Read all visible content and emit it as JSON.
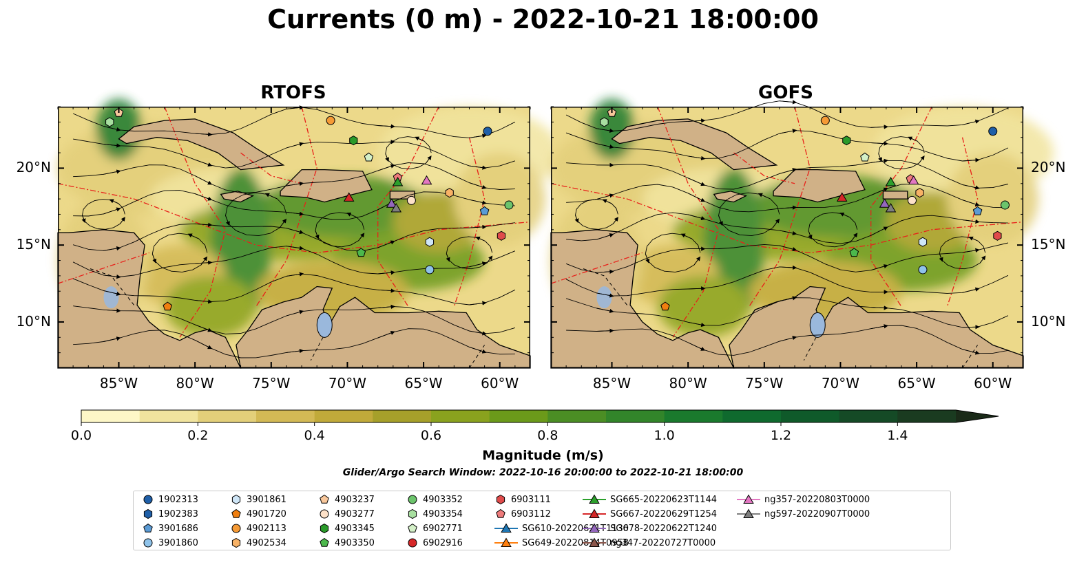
{
  "title": "Currents (0 m) - 2022-10-21 18:00:00",
  "panels": [
    {
      "title": "RTOFS",
      "markers": [
        {
          "id": "1902313",
          "lon": -60.8,
          "lat": 22.4
        },
        {
          "id": "3901686",
          "lon": -61.0,
          "lat": 17.2
        },
        {
          "id": "3901861",
          "lon": -64.6,
          "lat": 15.2
        },
        {
          "id": "3901860",
          "lon": -64.6,
          "lat": 13.4
        },
        {
          "id": "4901720",
          "lon": -81.8,
          "lat": 11.0
        },
        {
          "id": "4902113",
          "lon": -71.1,
          "lat": 23.1
        },
        {
          "id": "4902534",
          "lon": -63.3,
          "lat": 18.4
        },
        {
          "id": "4903237",
          "lon": -85.0,
          "lat": 23.6
        },
        {
          "id": "4903277",
          "lon": -65.8,
          "lat": 17.9
        },
        {
          "id": "4903345",
          "lon": -69.6,
          "lat": 21.8
        },
        {
          "id": "4903350",
          "lon": -69.1,
          "lat": 14.5
        },
        {
          "id": "4903352",
          "lon": -59.4,
          "lat": 17.6
        },
        {
          "id": "4903354",
          "lon": -85.6,
          "lat": 23.0
        },
        {
          "id": "6902771",
          "lon": -68.6,
          "lat": 20.7
        },
        {
          "id": "6903111",
          "lon": -59.9,
          "lat": 15.6
        },
        {
          "id": "6903112",
          "lon": -66.7,
          "lat": 19.4
        },
        {
          "id": "SG667-20220629T1254",
          "lon": -69.9,
          "lat": 18.1
        },
        {
          "id": "SG665-20220623T1144",
          "lon": -66.7,
          "lat": 19.1
        },
        {
          "id": "ng357-20220803T0000",
          "lon": -64.8,
          "lat": 19.2
        },
        {
          "id": "SG678-20220622T1240",
          "lon": -67.1,
          "lat": 17.7
        },
        {
          "id": "ng597-20220907T0000",
          "lon": -66.8,
          "lat": 17.4
        }
      ]
    },
    {
      "title": "GOFS",
      "markers": [
        {
          "id": "1902313",
          "lon": -60.0,
          "lat": 22.4
        },
        {
          "id": "3901686",
          "lon": -61.0,
          "lat": 17.2
        },
        {
          "id": "3901861",
          "lon": -64.6,
          "lat": 15.2
        },
        {
          "id": "3901860",
          "lon": -64.6,
          "lat": 13.4
        },
        {
          "id": "4901720",
          "lon": -81.5,
          "lat": 11.0
        },
        {
          "id": "4902113",
          "lon": -71.0,
          "lat": 23.1
        },
        {
          "id": "4902534",
          "lon": -64.8,
          "lat": 18.4
        },
        {
          "id": "4903237",
          "lon": -85.0,
          "lat": 23.6
        },
        {
          "id": "4903277",
          "lon": -65.3,
          "lat": 17.9
        },
        {
          "id": "4903345",
          "lon": -69.6,
          "lat": 21.8
        },
        {
          "id": "4903350",
          "lon": -69.1,
          "lat": 14.5
        },
        {
          "id": "4903352",
          "lon": -59.2,
          "lat": 17.6
        },
        {
          "id": "4903354",
          "lon": -85.5,
          "lat": 23.0
        },
        {
          "id": "6902771",
          "lon": -68.4,
          "lat": 20.7
        },
        {
          "id": "6903111",
          "lon": -59.7,
          "lat": 15.6
        },
        {
          "id": "6903112",
          "lon": -65.4,
          "lat": 19.3
        },
        {
          "id": "SG667-20220629T1254",
          "lon": -69.9,
          "lat": 18.1
        },
        {
          "id": "SG665-20220623T1144",
          "lon": -66.7,
          "lat": 19.1
        },
        {
          "id": "ng357-20220803T0000",
          "lon": -65.2,
          "lat": 19.2
        },
        {
          "id": "SG678-20220622T1240",
          "lon": -67.1,
          "lat": 17.7
        },
        {
          "id": "ng597-20220907T0000",
          "lon": -66.7,
          "lat": 17.4
        }
      ]
    }
  ],
  "axes": {
    "lon_ticks": [
      -85,
      -80,
      -75,
      -70,
      -65,
      -60
    ],
    "lon_labels": [
      "85°W",
      "80°W",
      "75°W",
      "70°W",
      "65°W",
      "60°W"
    ],
    "lat_ticks": [
      10,
      15,
      20
    ],
    "lat_labels": [
      "10°N",
      "15°N",
      "20°N"
    ],
    "lon_range": [
      -89,
      -58
    ],
    "lat_range": [
      7,
      24
    ]
  },
  "colorbar": {
    "label": "Magnitude (m/s)",
    "ticks": [
      0.0,
      0.2,
      0.4,
      0.6,
      0.8,
      1.0,
      1.2,
      1.4
    ],
    "tick_labels": [
      "0.0",
      "0.2",
      "0.4",
      "0.6",
      "0.8",
      "1.0",
      "1.2",
      "1.4"
    ],
    "vmin": 0.0,
    "vmax": 1.5,
    "extend": "max",
    "colors": [
      "#fdf7c7",
      "#f1e49e",
      "#e3cf7a",
      "#d3b955",
      "#c1aa3a",
      "#a6a02a",
      "#8aa21e",
      "#6b9a1a",
      "#4b8e24",
      "#32852a",
      "#1a7a2d",
      "#0f6a2e",
      "#0f5a2a",
      "#154a26",
      "#1a3b20"
    ]
  },
  "search_window": "Glider/Argo Search Window: 2022-10-16 20:00:00 to 2022-10-21 18:00:00",
  "legend": [
    {
      "label": "1902313",
      "marker": "circle",
      "color": "#1f5fa8"
    },
    {
      "label": "1902383",
      "marker": "hexagon",
      "color": "#1f5fa8"
    },
    {
      "label": "3901686",
      "marker": "pentagon",
      "color": "#5b9bd5"
    },
    {
      "label": "3901860",
      "marker": "circle",
      "color": "#8fc3ea"
    },
    {
      "label": "3901861",
      "marker": "hexagon",
      "color": "#cfe6f7"
    },
    {
      "label": "4901720",
      "marker": "pentagon",
      "color": "#f07f10"
    },
    {
      "label": "4902113",
      "marker": "circle",
      "color": "#f59a35"
    },
    {
      "label": "4902534",
      "marker": "hexagon",
      "color": "#f8b266"
    },
    {
      "label": "4903237",
      "marker": "pentagon",
      "color": "#f9c89c"
    },
    {
      "label": "4903277",
      "marker": "circle",
      "color": "#fde1c8"
    },
    {
      "label": "4903345",
      "marker": "hexagon",
      "color": "#2a9a2a"
    },
    {
      "label": "4903350",
      "marker": "pentagon",
      "color": "#4cb84c"
    },
    {
      "label": "4903352",
      "marker": "circle",
      "color": "#6cc46c"
    },
    {
      "label": "4903354",
      "marker": "hexagon",
      "color": "#a8dfa0"
    },
    {
      "label": "6902771",
      "marker": "pentagon",
      "color": "#d4f0c8"
    },
    {
      "label": "6902916",
      "marker": "circle",
      "color": "#d62728"
    },
    {
      "label": "6903111",
      "marker": "hexagon",
      "color": "#e04b4b"
    },
    {
      "label": "6903112",
      "marker": "pentagon",
      "color": "#ee7b7b"
    },
    {
      "label": "SG610-20220621T1130",
      "marker": "triangle-line",
      "color": "#1f77b4"
    },
    {
      "label": "SG649-20220814T0958",
      "marker": "triangle-line",
      "color": "#ff7f0e"
    },
    {
      "label": "SG665-20220623T1144",
      "marker": "triangle-line",
      "color": "#2ca02c"
    },
    {
      "label": "SG667-20220629T1254",
      "marker": "triangle-line",
      "color": "#d62728"
    },
    {
      "label": "SG678-20220622T1240",
      "marker": "triangle-line",
      "color": "#9467bd"
    },
    {
      "label": "ng347-20220727T0000",
      "marker": "triangle-line",
      "color": "#8c564b"
    },
    {
      "label": "ng357-20220803T0000",
      "marker": "triangle-line",
      "color": "#e377c2"
    },
    {
      "label": "ng597-20220907T0000",
      "marker": "triangle-line",
      "color": "#7f7f7f"
    }
  ]
}
